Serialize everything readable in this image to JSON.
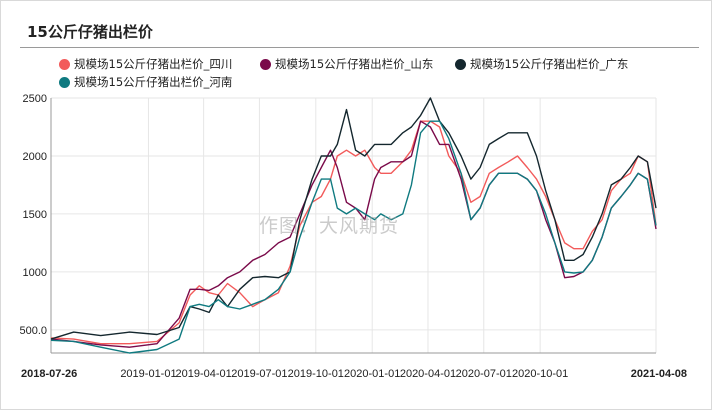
{
  "title": "15公斤仔猪出栏价",
  "watermark": "作图：大风期货",
  "colors": {
    "background": "#ffffff",
    "grid": "#e6e6e6",
    "axis": "#999999"
  },
  "chart_data": {
    "type": "line",
    "title": "15公斤仔猪出栏价",
    "xlabel": "",
    "ylabel": "",
    "ylim": [
      300,
      2500
    ],
    "yticks": [
      500.0,
      1000,
      1500,
      2000,
      2500
    ],
    "ytick_labels": [
      "500.0",
      "1000",
      "1500",
      "2000",
      "2500"
    ],
    "xlim": [
      "2018-07-26",
      "2021-04-08"
    ],
    "xticks": [
      {
        "date": "2018-07-26",
        "label": "2018-07-26",
        "bold": true
      },
      {
        "date": "2019-01-01",
        "label": "2019-01-01",
        "bold": false
      },
      {
        "date": "2019-04-01",
        "label": "2019-04-01",
        "bold": false
      },
      {
        "date": "2019-07-01",
        "label": "2019-07-01",
        "bold": false
      },
      {
        "date": "2019-10-01",
        "label": "2019-10-01",
        "bold": false
      },
      {
        "date": "2020-01-01",
        "label": "2020-01-01",
        "bold": false
      },
      {
        "date": "2020-04-01",
        "label": "2020-04-01",
        "bold": false
      },
      {
        "date": "2020-07-01",
        "label": "2020-07-01",
        "bold": false
      },
      {
        "date": "2020-10-01",
        "label": "2020-10-01",
        "bold": false
      },
      {
        "date": "2021-04-08",
        "label": "2021-04-08",
        "bold": true
      }
    ],
    "grid": true,
    "legend_position": "top",
    "series": [
      {
        "name": "规模场15公斤仔猪出栏价_四川",
        "color": "#f25b5b",
        "points": [
          [
            "2018-07-26",
            430
          ],
          [
            "2018-09-01",
            420
          ],
          [
            "2018-10-15",
            380
          ],
          [
            "2018-12-01",
            380
          ],
          [
            "2019-01-15",
            400
          ],
          [
            "2019-02-20",
            560
          ],
          [
            "2019-03-10",
            800
          ],
          [
            "2019-03-25",
            880
          ],
          [
            "2019-04-10",
            820
          ],
          [
            "2019-04-25",
            800
          ],
          [
            "2019-05-10",
            900
          ],
          [
            "2019-05-30",
            820
          ],
          [
            "2019-06-20",
            700
          ],
          [
            "2019-07-10",
            760
          ],
          [
            "2019-08-01",
            820
          ],
          [
            "2019-08-20",
            1050
          ],
          [
            "2019-09-05",
            1400
          ],
          [
            "2019-09-25",
            1600
          ],
          [
            "2019-10-10",
            1650
          ],
          [
            "2019-10-25",
            1800
          ],
          [
            "2019-11-05",
            2000
          ],
          [
            "2019-11-20",
            2050
          ],
          [
            "2019-12-05",
            2000
          ],
          [
            "2019-12-20",
            2050
          ],
          [
            "2020-01-05",
            1900
          ],
          [
            "2020-01-15",
            1850
          ],
          [
            "2020-02-01",
            1850
          ],
          [
            "2020-02-20",
            1950
          ],
          [
            "2020-03-05",
            2050
          ],
          [
            "2020-03-20",
            2300
          ],
          [
            "2020-04-05",
            2300
          ],
          [
            "2020-04-20",
            2250
          ],
          [
            "2020-05-05",
            2000
          ],
          [
            "2020-05-25",
            1850
          ],
          [
            "2020-06-10",
            1600
          ],
          [
            "2020-06-25",
            1650
          ],
          [
            "2020-07-10",
            1850
          ],
          [
            "2020-07-25",
            1900
          ],
          [
            "2020-08-10",
            1950
          ],
          [
            "2020-08-25",
            2000
          ],
          [
            "2020-09-10",
            1900
          ],
          [
            "2020-09-25",
            1800
          ],
          [
            "2020-10-10",
            1650
          ],
          [
            "2020-10-25",
            1450
          ],
          [
            "2020-11-10",
            1250
          ],
          [
            "2020-11-25",
            1200
          ],
          [
            "2020-12-10",
            1200
          ],
          [
            "2020-12-25",
            1350
          ],
          [
            "2021-01-10",
            1450
          ],
          [
            "2021-01-25",
            1700
          ],
          [
            "2021-02-10",
            1800
          ],
          [
            "2021-02-25",
            1850
          ],
          [
            "2021-03-10",
            2000
          ],
          [
            "2021-03-25",
            1950
          ],
          [
            "2021-04-08",
            1400
          ]
        ]
      },
      {
        "name": "规模场15公斤仔猪出栏价_山东",
        "color": "#7a0a4a",
        "points": [
          [
            "2018-07-26",
            420
          ],
          [
            "2018-09-01",
            400
          ],
          [
            "2018-10-15",
            370
          ],
          [
            "2018-12-01",
            350
          ],
          [
            "2019-01-15",
            380
          ],
          [
            "2019-02-20",
            600
          ],
          [
            "2019-03-10",
            850
          ],
          [
            "2019-03-25",
            850
          ],
          [
            "2019-04-10",
            840
          ],
          [
            "2019-04-25",
            880
          ],
          [
            "2019-05-10",
            950
          ],
          [
            "2019-05-30",
            1000
          ],
          [
            "2019-06-20",
            1100
          ],
          [
            "2019-07-10",
            1150
          ],
          [
            "2019-08-01",
            1250
          ],
          [
            "2019-08-20",
            1300
          ],
          [
            "2019-09-05",
            1500
          ],
          [
            "2019-09-25",
            1750
          ],
          [
            "2019-10-10",
            1900
          ],
          [
            "2019-10-25",
            2050
          ],
          [
            "2019-11-05",
            1900
          ],
          [
            "2019-11-20",
            1600
          ],
          [
            "2019-12-05",
            1550
          ],
          [
            "2019-12-20",
            1450
          ],
          [
            "2020-01-05",
            1800
          ],
          [
            "2020-01-15",
            1900
          ],
          [
            "2020-02-01",
            1950
          ],
          [
            "2020-02-20",
            1950
          ],
          [
            "2020-03-05",
            2000
          ],
          [
            "2020-03-20",
            2300
          ],
          [
            "2020-04-05",
            2250
          ],
          [
            "2020-04-20",
            2100
          ],
          [
            "2020-05-05",
            2100
          ],
          [
            "2020-05-25",
            1800
          ],
          [
            "2020-06-10",
            1450
          ],
          [
            "2020-06-25",
            1550
          ],
          [
            "2020-07-10",
            1750
          ],
          [
            "2020-07-25",
            1850
          ],
          [
            "2020-08-10",
            1850
          ],
          [
            "2020-08-25",
            1850
          ],
          [
            "2020-09-10",
            1800
          ],
          [
            "2020-09-25",
            1700
          ],
          [
            "2020-10-10",
            1450
          ],
          [
            "2020-10-25",
            1250
          ],
          [
            "2020-11-10",
            950
          ],
          [
            "2020-11-25",
            960
          ],
          [
            "2020-12-10",
            1000
          ],
          [
            "2020-12-25",
            1100
          ],
          [
            "2021-01-10",
            1300
          ],
          [
            "2021-01-25",
            1550
          ],
          [
            "2021-02-10",
            1650
          ],
          [
            "2021-02-25",
            1750
          ],
          [
            "2021-03-10",
            1850
          ],
          [
            "2021-03-25",
            1800
          ],
          [
            "2021-04-08",
            1370
          ]
        ]
      },
      {
        "name": "规模场15公斤仔猪出栏价_广东",
        "color": "#14272e",
        "points": [
          [
            "2018-07-26",
            420
          ],
          [
            "2018-09-01",
            480
          ],
          [
            "2018-10-15",
            450
          ],
          [
            "2018-12-01",
            480
          ],
          [
            "2019-01-15",
            460
          ],
          [
            "2019-02-20",
            520
          ],
          [
            "2019-03-10",
            700
          ],
          [
            "2019-03-25",
            680
          ],
          [
            "2019-04-10",
            650
          ],
          [
            "2019-04-25",
            800
          ],
          [
            "2019-05-10",
            700
          ],
          [
            "2019-05-30",
            850
          ],
          [
            "2019-06-20",
            950
          ],
          [
            "2019-07-10",
            960
          ],
          [
            "2019-08-01",
            950
          ],
          [
            "2019-08-20",
            1000
          ],
          [
            "2019-09-05",
            1450
          ],
          [
            "2019-09-25",
            1800
          ],
          [
            "2019-10-10",
            2000
          ],
          [
            "2019-10-25",
            2000
          ],
          [
            "2019-11-05",
            2100
          ],
          [
            "2019-11-20",
            2400
          ],
          [
            "2019-12-05",
            2050
          ],
          [
            "2019-12-20",
            2000
          ],
          [
            "2020-01-05",
            2100
          ],
          [
            "2020-01-15",
            2100
          ],
          [
            "2020-02-01",
            2100
          ],
          [
            "2020-02-20",
            2200
          ],
          [
            "2020-03-05",
            2250
          ],
          [
            "2020-03-20",
            2350
          ],
          [
            "2020-04-05",
            2500
          ],
          [
            "2020-04-20",
            2300
          ],
          [
            "2020-05-05",
            2200
          ],
          [
            "2020-05-25",
            2000
          ],
          [
            "2020-06-10",
            1800
          ],
          [
            "2020-06-25",
            1900
          ],
          [
            "2020-07-10",
            2100
          ],
          [
            "2020-07-25",
            2150
          ],
          [
            "2020-08-10",
            2200
          ],
          [
            "2020-08-25",
            2200
          ],
          [
            "2020-09-10",
            2200
          ],
          [
            "2020-09-25",
            2000
          ],
          [
            "2020-10-10",
            1700
          ],
          [
            "2020-10-25",
            1450
          ],
          [
            "2020-11-10",
            1100
          ],
          [
            "2020-11-25",
            1100
          ],
          [
            "2020-12-10",
            1150
          ],
          [
            "2020-12-25",
            1300
          ],
          [
            "2021-01-10",
            1500
          ],
          [
            "2021-01-25",
            1750
          ],
          [
            "2021-02-10",
            1800
          ],
          [
            "2021-02-25",
            1900
          ],
          [
            "2021-03-10",
            2000
          ],
          [
            "2021-03-25",
            1950
          ],
          [
            "2021-04-08",
            1550
          ]
        ]
      },
      {
        "name": "规模场15公斤仔猪出栏价_河南",
        "color": "#0f7a80",
        "points": [
          [
            "2018-07-26",
            410
          ],
          [
            "2018-09-01",
            400
          ],
          [
            "2018-10-15",
            350
          ],
          [
            "2018-12-01",
            300
          ],
          [
            "2019-01-15",
            330
          ],
          [
            "2019-02-20",
            420
          ],
          [
            "2019-03-10",
            700
          ],
          [
            "2019-03-25",
            720
          ],
          [
            "2019-04-10",
            700
          ],
          [
            "2019-04-25",
            760
          ],
          [
            "2019-05-10",
            700
          ],
          [
            "2019-05-30",
            680
          ],
          [
            "2019-06-20",
            720
          ],
          [
            "2019-07-10",
            760
          ],
          [
            "2019-08-01",
            850
          ],
          [
            "2019-08-20",
            1000
          ],
          [
            "2019-09-05",
            1300
          ],
          [
            "2019-09-25",
            1600
          ],
          [
            "2019-10-10",
            1800
          ],
          [
            "2019-10-25",
            1800
          ],
          [
            "2019-11-05",
            1550
          ],
          [
            "2019-11-20",
            1500
          ],
          [
            "2019-12-05",
            1550
          ],
          [
            "2019-12-20",
            1500
          ],
          [
            "2020-01-05",
            1450
          ],
          [
            "2020-01-15",
            1500
          ],
          [
            "2020-02-01",
            1450
          ],
          [
            "2020-02-20",
            1500
          ],
          [
            "2020-03-05",
            1750
          ],
          [
            "2020-03-20",
            2200
          ],
          [
            "2020-04-05",
            2300
          ],
          [
            "2020-04-20",
            2300
          ],
          [
            "2020-05-05",
            2150
          ],
          [
            "2020-05-25",
            1850
          ],
          [
            "2020-06-10",
            1450
          ],
          [
            "2020-06-25",
            1550
          ],
          [
            "2020-07-10",
            1750
          ],
          [
            "2020-07-25",
            1850
          ],
          [
            "2020-08-10",
            1850
          ],
          [
            "2020-08-25",
            1850
          ],
          [
            "2020-09-10",
            1800
          ],
          [
            "2020-09-25",
            1700
          ],
          [
            "2020-10-10",
            1500
          ],
          [
            "2020-10-25",
            1250
          ],
          [
            "2020-11-10",
            1000
          ],
          [
            "2020-11-25",
            990
          ],
          [
            "2020-12-10",
            1000
          ],
          [
            "2020-12-25",
            1100
          ],
          [
            "2021-01-10",
            1300
          ],
          [
            "2021-01-25",
            1550
          ],
          [
            "2021-02-10",
            1650
          ],
          [
            "2021-02-25",
            1750
          ],
          [
            "2021-03-10",
            1850
          ],
          [
            "2021-03-25",
            1800
          ],
          [
            "2021-04-08",
            1400
          ]
        ]
      }
    ]
  }
}
